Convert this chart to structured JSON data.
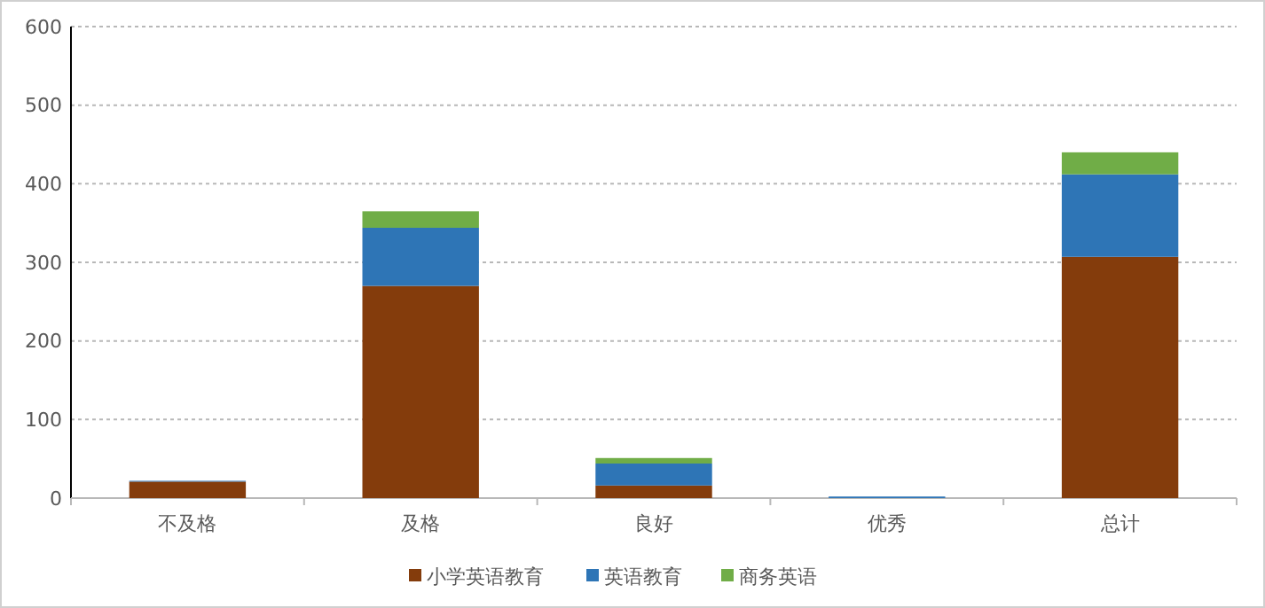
{
  "chart_data": {
    "type": "bar",
    "stacked": true,
    "categories": [
      "不及格",
      "及格",
      "良好",
      "优秀",
      "总计"
    ],
    "series": [
      {
        "name": "小学英语教育",
        "color": "#843c0c",
        "values": [
          21,
          270,
          16,
          0,
          307
        ]
      },
      {
        "name": "英语教育",
        "color": "#2e75b6",
        "values": [
          1,
          74,
          28,
          2,
          105
        ]
      },
      {
        "name": "商务英语",
        "color": "#70ad47",
        "values": [
          0,
          21,
          7,
          0,
          28
        ]
      }
    ],
    "ylim": [
      0,
      600
    ],
    "yticks": [
      0,
      100,
      200,
      300,
      400,
      500,
      600
    ],
    "grid": "y",
    "legend": "bottom"
  }
}
